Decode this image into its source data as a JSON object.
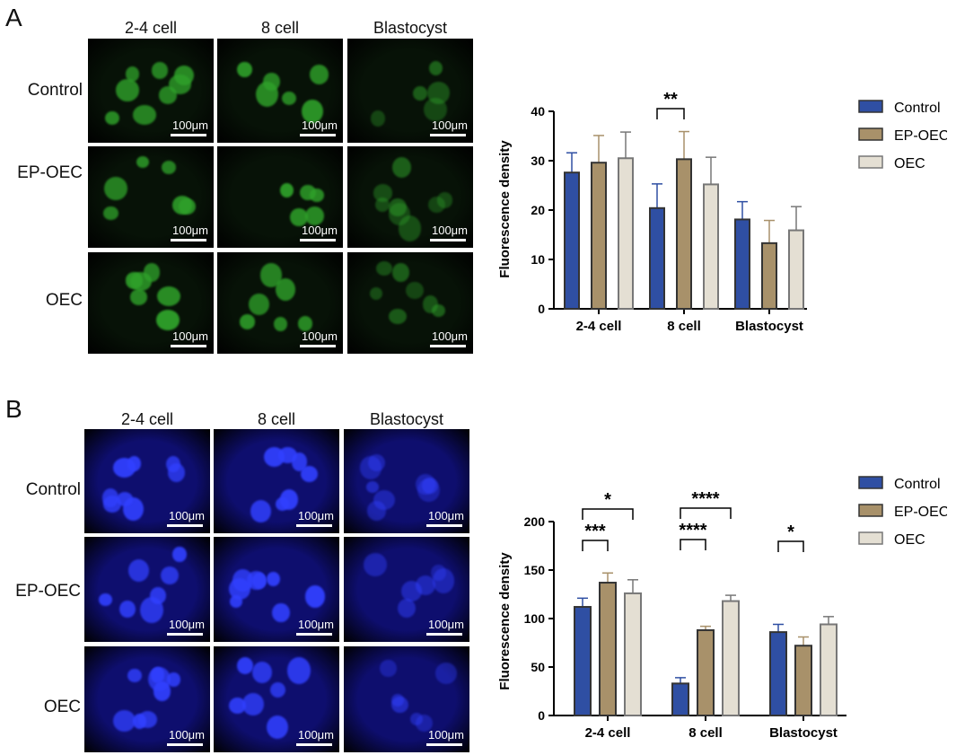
{
  "panels": [
    {
      "letter": "A",
      "columns": [
        "2-4 cell",
        "8 cell",
        "Blastocyst"
      ],
      "rows": [
        "Control",
        "EP-OEC",
        "OEC"
      ],
      "scale_label": "100μm",
      "stain_color": "#2fa12a",
      "background_color": "#071207"
    },
    {
      "letter": "B",
      "columns": [
        "2-4 cell",
        "8 cell",
        "Blastocyst"
      ],
      "rows": [
        "Control",
        "EP-OEC",
        "OEC"
      ],
      "scale_label": "100μm",
      "stain_color": "#3140ff",
      "background_color": "#0e0e6e"
    }
  ],
  "chart_data": [
    {
      "type": "bar",
      "categories": [
        "2-4 cell",
        "8 cell",
        "Blastocyst"
      ],
      "series": [
        {
          "name": "Control",
          "values": [
            27.6,
            20.4,
            18.1
          ],
          "errors": [
            4.0,
            4.9,
            3.6
          ],
          "color": "#2f4fa3"
        },
        {
          "name": "EP-OEC",
          "values": [
            29.6,
            30.3,
            13.3
          ],
          "errors": [
            5.5,
            5.6,
            4.6
          ],
          "color": "#a8916a"
        },
        {
          "name": "OEC",
          "values": [
            30.5,
            25.2,
            15.9
          ],
          "errors": [
            5.3,
            5.5,
            4.8
          ],
          "color": "#e4dfd3"
        }
      ],
      "ylabel": "Fluorescence density",
      "ylim": [
        0,
        40
      ],
      "yticks": [
        0,
        10,
        20,
        30,
        40
      ],
      "significance": [
        {
          "category": 1,
          "from": 0,
          "to": 1,
          "label": "**"
        }
      ]
    },
    {
      "type": "bar",
      "categories": [
        "2-4 cell",
        "8 cell",
        "Blastocyst"
      ],
      "series": [
        {
          "name": "Control",
          "values": [
            112,
            33,
            86
          ],
          "errors": [
            9,
            6,
            8
          ],
          "color": "#2f4fa3"
        },
        {
          "name": "EP-OEC",
          "values": [
            137,
            88,
            72
          ],
          "errors": [
            10,
            4,
            9
          ],
          "color": "#a8916a"
        },
        {
          "name": "OEC",
          "values": [
            126,
            118,
            94
          ],
          "errors": [
            14,
            6,
            8
          ],
          "color": "#e4dfd3"
        }
      ],
      "ylabel": "Fluorescence density",
      "ylim": [
        0,
        200
      ],
      "yticks": [
        0,
        50,
        100,
        150,
        200
      ],
      "significance": [
        {
          "category": 0,
          "from": 0,
          "to": 2,
          "label": "*"
        },
        {
          "category": 0,
          "from": 0,
          "to": 1,
          "label": "***"
        },
        {
          "category": 1,
          "from": 0,
          "to": 2,
          "label": "****"
        },
        {
          "category": 1,
          "from": 0,
          "to": 1,
          "label": "****"
        },
        {
          "category": 2,
          "from": 0,
          "to": 1,
          "label": "*"
        }
      ]
    }
  ]
}
